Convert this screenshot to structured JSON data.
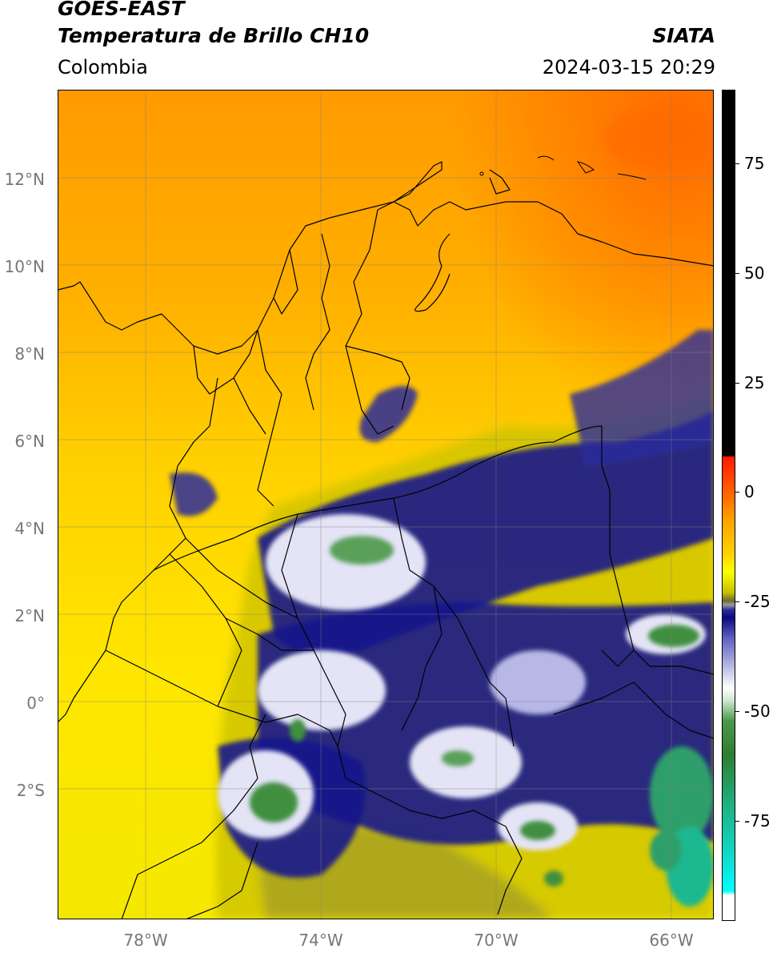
{
  "header": {
    "title_line1": "GOES-EAST",
    "title_line2": "Temperatura de Brillo CH10",
    "region": "Colombia",
    "source": "SIATA",
    "datetime": "2024-03-15 20:29"
  },
  "axes": {
    "lat_labels": [
      "12°N",
      "10°N",
      "8°N",
      "6°N",
      "4°N",
      "2°N",
      "0°",
      "2°S"
    ],
    "lon_labels": [
      "78°W",
      "74°W",
      "70°W",
      "66°W"
    ]
  },
  "colorbar": {
    "labels": [
      "75",
      "50",
      "25",
      "0",
      "-25",
      "-50",
      "-75"
    ]
  },
  "colors": {
    "warm_sea": "#ff8c00",
    "warm_land": "#ffd400",
    "cloud_dark": "#1a1a8c",
    "cloud_white": "#f2f2ff",
    "cloud_green": "#3f8f3f"
  }
}
